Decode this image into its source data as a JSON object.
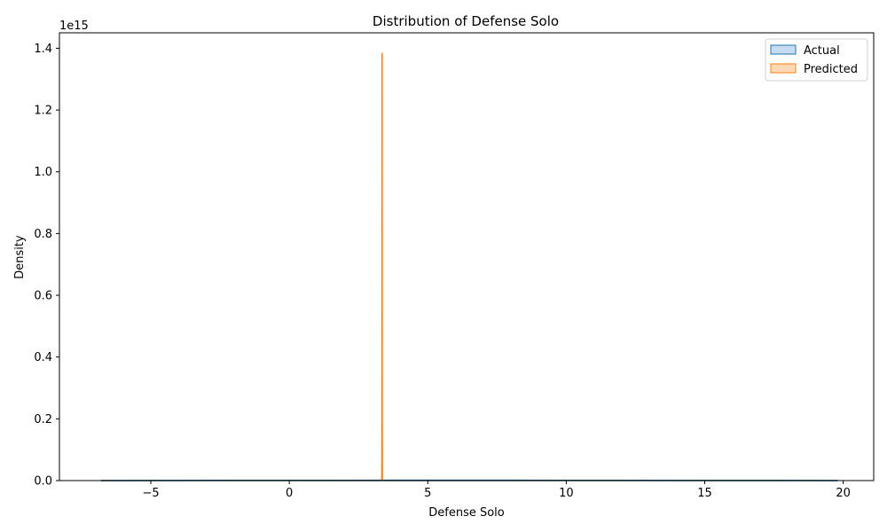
{
  "chart_data": {
    "type": "area",
    "title": "Distribution of Defense Solo",
    "xlabel": "Defense Solo",
    "ylabel": "Density",
    "y_offset_label": "1e15",
    "xlim": [
      -8.3,
      21.1
    ],
    "ylim": [
      0,
      1.45
    ],
    "x_ticks": [
      -5,
      0,
      5,
      10,
      15,
      20
    ],
    "x_tick_labels": [
      "−5",
      "0",
      "5",
      "10",
      "15",
      "20"
    ],
    "y_ticks": [
      0,
      0.2,
      0.4,
      0.6,
      0.8,
      1.0,
      1.2,
      1.4
    ],
    "y_tick_labels": [
      "0.0",
      "0.2",
      "0.4",
      "0.6",
      "0.8",
      "1.0",
      "1.2",
      "1.4"
    ],
    "grid": false,
    "legend_position": "top-right",
    "series": [
      {
        "name": "Actual",
        "color": "#1f77b4",
        "fill": "#c6dbef",
        "x": [
          -6.8,
          -4,
          0,
          4,
          8,
          12,
          16,
          19.8
        ],
        "y": [
          0.0001,
          0.0004,
          0.0008,
          0.001,
          0.0009,
          0.0006,
          0.0003,
          0.0001
        ]
      },
      {
        "name": "Predicted",
        "color": "#ff7f0e",
        "fill": "#ffd8b5",
        "x": [
          3.34,
          3.345,
          3.35,
          3.355,
          3.36
        ],
        "y": [
          0,
          0.2,
          1.385,
          0.2,
          0
        ]
      }
    ]
  }
}
